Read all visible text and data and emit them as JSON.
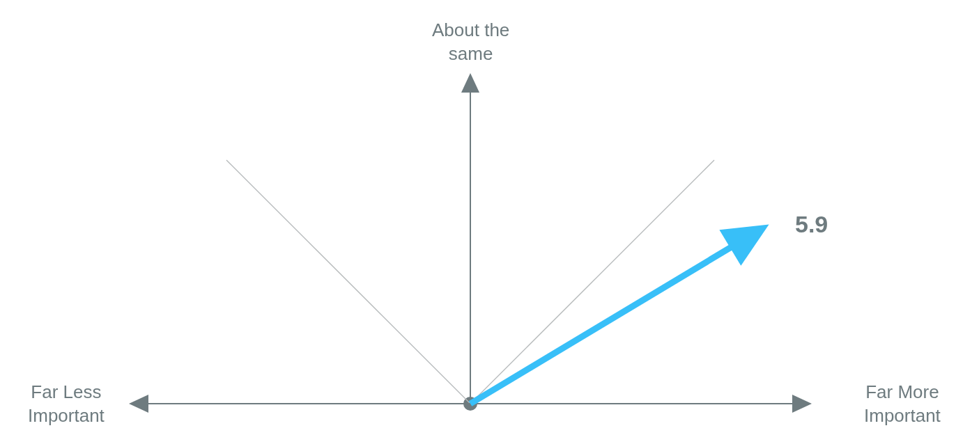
{
  "chart_data": {
    "type": "other",
    "annotations": [
      "Far Less Important",
      "About the same",
      "Far More Important"
    ],
    "values": [
      5.9
    ],
    "color": "#38bff8",
    "data_labels": true
  }
}
